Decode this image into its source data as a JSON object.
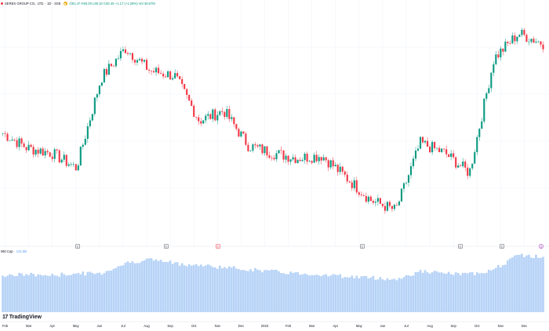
{
  "legend": {
    "symbol": "SERES GROUP CO., LTD. · 1D · SSE",
    "ohlc": "O91.47 H93.00 L90.10 C92.45 +1.17 (+1.28%) Vol 40.67M"
  },
  "volume_legend": {
    "label": "Mkt Cap",
    "value": "131.5B"
  },
  "branding": {
    "name": "TradingView"
  },
  "colors": {
    "up": "#089981",
    "down": "#f23645",
    "volume": "#b7d3f7",
    "grid": "#f0f3fa",
    "axis_text": "#131722"
  },
  "events": [
    {
      "label": "E",
      "kind": "earnings"
    },
    {
      "label": "E",
      "kind": "earnings"
    },
    {
      "label": "D",
      "kind": "dividend"
    },
    {
      "label": "E",
      "kind": "earnings"
    },
    {
      "label": "E",
      "kind": "earnings"
    },
    {
      "label": "E",
      "kind": "earnings"
    },
    {
      "label": "S",
      "kind": "split"
    }
  ],
  "chart_data": {
    "type": "candlestick",
    "x_axis_months": [
      "Feb",
      "Mar",
      "Apr",
      "May",
      "Jun",
      "Jul",
      "Aug",
      "Sep",
      "Oct",
      "Nov",
      "Dec",
      "2023",
      "Feb",
      "Mar",
      "Apr",
      "May",
      "Jun",
      "Jul",
      "Aug",
      "Sep",
      "Oct",
      "Nov",
      "Dec"
    ],
    "price_trend": [
      {
        "date": "Feb",
        "price": 56
      },
      {
        "date": "Mar",
        "price": 50
      },
      {
        "date": "Apr",
        "price": 48
      },
      {
        "date": "May",
        "price": 42
      },
      {
        "date": "Jun",
        "price": 78
      },
      {
        "date": "Jul",
        "price": 90
      },
      {
        "date": "Aug",
        "price": 81
      },
      {
        "date": "Sep",
        "price": 79
      },
      {
        "date": "Oct",
        "price": 61
      },
      {
        "date": "Nov",
        "price": 65
      },
      {
        "date": "Dec",
        "price": 51
      },
      {
        "date": "2023",
        "price": 48
      },
      {
        "date": "Feb",
        "price": 46
      },
      {
        "date": "Mar",
        "price": 47
      },
      {
        "date": "Apr",
        "price": 38
      },
      {
        "date": "May",
        "price": 29
      },
      {
        "date": "Jun",
        "price": 25
      },
      {
        "date": "Jul",
        "price": 52
      },
      {
        "date": "Aug",
        "price": 48
      },
      {
        "date": "Sep",
        "price": 40
      },
      {
        "date": "Oct",
        "price": 86
      },
      {
        "date": "Nov",
        "price": 96
      },
      {
        "date": "Dec",
        "price": 92
      }
    ],
    "volume_trend": [
      36,
      37,
      36,
      38,
      38,
      48,
      52,
      48,
      46,
      44,
      42,
      40,
      38,
      37,
      35,
      34,
      32,
      40,
      38,
      37,
      42,
      56,
      54
    ]
  }
}
